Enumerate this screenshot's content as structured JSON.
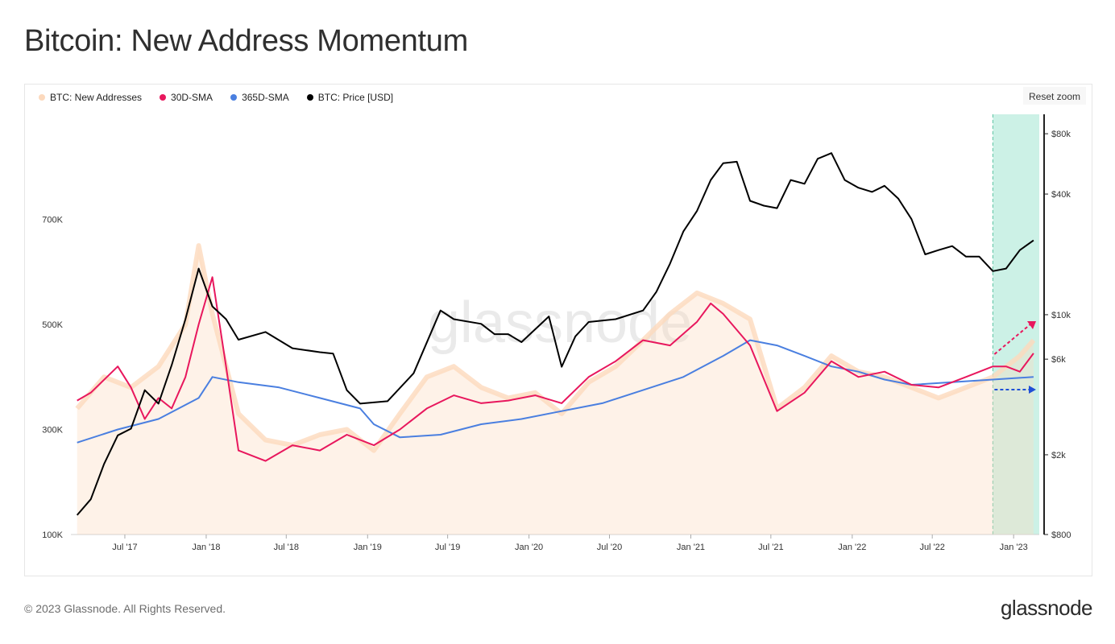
{
  "title": "Bitcoin: New Address Momentum",
  "toolbar": {
    "reset_zoom_label": "Reset zoom"
  },
  "footer": {
    "copyright": "© 2023 Glassnode. All Rights Reserved.",
    "logo": "glassnode"
  },
  "watermark": "glassnode",
  "colors": {
    "new_addresses": "#fcd9bd",
    "sma30": "#e8175d",
    "sma365": "#4a7fe0",
    "price": "#000000",
    "highlight": "#bfeee0"
  },
  "chart_data": {
    "type": "line",
    "legend": [
      "BTC: New Addresses",
      "30D-SMA",
      "365D-SMA",
      "BTC: Price [USD]"
    ],
    "legend_position": "top-left",
    "grid": false,
    "x_ticks": [
      "Jul '17",
      "Jan '18",
      "Jul '18",
      "Jan '19",
      "Jul '19",
      "Jan '20",
      "Jul '20",
      "Jan '21",
      "Jul '21",
      "Jan '22",
      "Jul '22",
      "Jan '23"
    ],
    "y_left_ticks": [
      "100K",
      "300K",
      "500K",
      "700K"
    ],
    "y_left_range": [
      100000,
      900000
    ],
    "y_right_ticks": [
      "$800",
      "$2k",
      "$6k",
      "$10k",
      "$40k",
      "$80k"
    ],
    "y_right_range": [
      800,
      100000
    ],
    "y_right_scale": "log",
    "x_range": [
      "2017-03-01",
      "2023-02-28"
    ],
    "highlight_range": [
      "2022-11-15",
      "2023-02-28"
    ],
    "series": [
      {
        "name": "BTC: New Addresses",
        "axis": "left",
        "x": [
          "2017-03",
          "2017-05",
          "2017-07",
          "2017-09",
          "2017-11",
          "2017-12",
          "2018-01",
          "2018-03",
          "2018-05",
          "2018-07",
          "2018-09",
          "2018-11",
          "2019-01",
          "2019-03",
          "2019-05",
          "2019-07",
          "2019-09",
          "2019-11",
          "2020-01",
          "2020-03",
          "2020-05",
          "2020-07",
          "2020-09",
          "2020-11",
          "2021-01",
          "2021-03",
          "2021-05",
          "2021-07",
          "2021-09",
          "2021-11",
          "2022-01",
          "2022-03",
          "2022-05",
          "2022-07",
          "2022-09",
          "2022-11",
          "2023-01",
          "2023-02"
        ],
        "values": [
          340000,
          400000,
          380000,
          420000,
          500000,
          650000,
          520000,
          330000,
          280000,
          270000,
          290000,
          300000,
          260000,
          330000,
          400000,
          420000,
          380000,
          360000,
          370000,
          330000,
          390000,
          420000,
          470000,
          520000,
          560000,
          540000,
          510000,
          340000,
          380000,
          440000,
          410000,
          400000,
          380000,
          360000,
          380000,
          400000,
          440000,
          470000
        ]
      },
      {
        "name": "30D-SMA",
        "axis": "left",
        "x": [
          "2017-03",
          "2017-04",
          "2017-06",
          "2017-07",
          "2017-08",
          "2017-09",
          "2017-10",
          "2017-11",
          "2017-12",
          "2018-01",
          "2018-02",
          "2018-03",
          "2018-05",
          "2018-07",
          "2018-09",
          "2018-11",
          "2019-01",
          "2019-03",
          "2019-05",
          "2019-07",
          "2019-09",
          "2019-11",
          "2020-01",
          "2020-03",
          "2020-05",
          "2020-07",
          "2020-09",
          "2020-11",
          "2021-01",
          "2021-02",
          "2021-03",
          "2021-05",
          "2021-07",
          "2021-09",
          "2021-11",
          "2022-01",
          "2022-03",
          "2022-05",
          "2022-07",
          "2022-09",
          "2022-11",
          "2022-12",
          "2023-01",
          "2023-02"
        ],
        "values": [
          355000,
          370000,
          420000,
          380000,
          320000,
          360000,
          340000,
          400000,
          500000,
          590000,
          420000,
          260000,
          240000,
          270000,
          260000,
          290000,
          270000,
          300000,
          340000,
          365000,
          350000,
          355000,
          365000,
          350000,
          400000,
          430000,
          470000,
          460000,
          505000,
          540000,
          520000,
          460000,
          335000,
          370000,
          430000,
          400000,
          410000,
          385000,
          380000,
          400000,
          420000,
          420000,
          410000,
          445000
        ]
      },
      {
        "name": "365D-SMA",
        "axis": "left",
        "x": [
          "2017-03",
          "2017-06",
          "2017-09",
          "2017-12",
          "2018-01",
          "2018-03",
          "2018-06",
          "2018-09",
          "2018-12",
          "2019-01",
          "2019-03",
          "2019-06",
          "2019-09",
          "2019-12",
          "2020-03",
          "2020-06",
          "2020-09",
          "2020-12",
          "2021-03",
          "2021-05",
          "2021-07",
          "2021-09",
          "2021-11",
          "2022-01",
          "2022-03",
          "2022-05",
          "2022-08",
          "2022-11",
          "2023-02"
        ],
        "values": [
          275000,
          300000,
          320000,
          360000,
          400000,
          390000,
          380000,
          360000,
          340000,
          310000,
          285000,
          290000,
          310000,
          320000,
          335000,
          350000,
          375000,
          400000,
          440000,
          470000,
          460000,
          440000,
          420000,
          410000,
          395000,
          385000,
          390000,
          395000,
          400000
        ]
      },
      {
        "name": "BTC: Price [USD]",
        "axis": "right",
        "x": [
          "2017-03",
          "2017-04",
          "2017-05",
          "2017-06",
          "2017-07",
          "2017-08",
          "2017-09",
          "2017-10",
          "2017-11",
          "2017-12",
          "2018-01",
          "2018-02",
          "2018-03",
          "2018-05",
          "2018-07",
          "2018-09",
          "2018-10",
          "2018-11",
          "2018-12",
          "2019-02",
          "2019-04",
          "2019-06",
          "2019-07",
          "2019-09",
          "2019-10",
          "2019-11",
          "2019-12",
          "2020-02",
          "2020-03",
          "2020-04",
          "2020-05",
          "2020-07",
          "2020-09",
          "2020-10",
          "2020-11",
          "2020-12",
          "2021-01",
          "2021-02",
          "2021-03",
          "2021-04",
          "2021-05",
          "2021-06",
          "2021-07",
          "2021-08",
          "2021-09",
          "2021-10",
          "2021-11",
          "2021-12",
          "2022-01",
          "2022-02",
          "2022-03",
          "2022-04",
          "2022-05",
          "2022-06",
          "2022-07",
          "2022-08",
          "2022-09",
          "2022-10",
          "2022-11",
          "2022-12",
          "2023-01",
          "2023-02"
        ],
        "values": [
          1000,
          1200,
          1800,
          2500,
          2700,
          4200,
          3600,
          5600,
          9500,
          17000,
          11000,
          9500,
          7500,
          8200,
          6800,
          6500,
          6400,
          4200,
          3600,
          3700,
          5100,
          10500,
          9500,
          9000,
          8000,
          8000,
          7300,
          9800,
          5500,
          7800,
          9200,
          9500,
          10500,
          13000,
          18000,
          26000,
          33000,
          47000,
          57000,
          58000,
          37000,
          35000,
          34000,
          47000,
          45000,
          60000,
          64000,
          47000,
          43000,
          41000,
          44000,
          38000,
          30000,
          20000,
          21000,
          22000,
          19500,
          19500,
          16500,
          17000,
          21000,
          23500
        ]
      }
    ]
  }
}
